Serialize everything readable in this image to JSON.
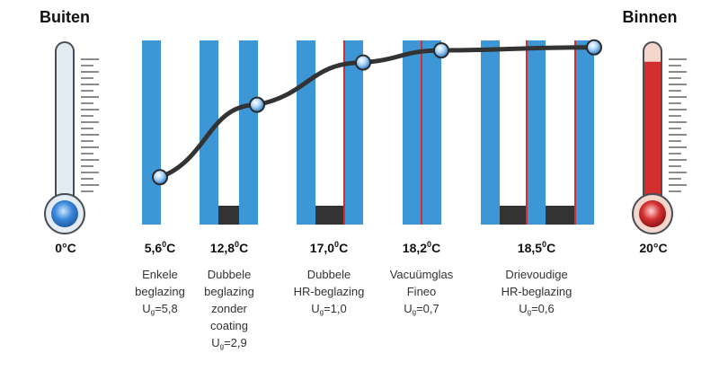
{
  "titles": {
    "outside": "Buiten",
    "inside": "Binnen"
  },
  "thermometers": {
    "outside": {
      "temperature": "0°C",
      "level": 0.0,
      "color": "#dde6f2",
      "bulb_color": "#3a86d9"
    },
    "inside": {
      "temperature": "20°C",
      "level": 0.93,
      "color": "#d32f2f",
      "bulb_color": "#c62828"
    }
  },
  "colors": {
    "glass": "#3d96d6",
    "spacer": "#333333",
    "coating": "#d32f2f",
    "curve": "#333333"
  },
  "chart_data": {
    "type": "line",
    "title": "",
    "categories": [
      "Enkele beglazing",
      "Dubbele beglazing zonder coating",
      "Dubbele HR-beglazing",
      "Vacuümglas Fineo",
      "Drievoudige HR-beglazing"
    ],
    "values": [
      5.6,
      12.8,
      17.0,
      18.2,
      18.5
    ],
    "unit": "°C"
  },
  "glazing": [
    {
      "temperature": "5,6",
      "unit": "C",
      "description": [
        "Enkele",
        "beglazing"
      ],
      "u_prefix": "U",
      "u_sub": "g",
      "u_value": "=5,8",
      "panes": 1,
      "spacers": 0,
      "coatings": 0
    },
    {
      "temperature": "12,8",
      "unit": "C",
      "description": [
        "Dubbele",
        "beglazing",
        "zonder",
        "coating"
      ],
      "u_prefix": "U",
      "u_sub": "g",
      "u_value": "=2,9",
      "panes": 2,
      "spacers": 1,
      "coatings": 0
    },
    {
      "temperature": "17,0",
      "unit": "C",
      "description": [
        "Dubbele",
        "HR-beglazing"
      ],
      "u_prefix": "U",
      "u_sub": "g",
      "u_value": "=1,0",
      "panes": 2,
      "spacers": 1,
      "coatings": 1
    },
    {
      "temperature": "18,2",
      "unit": "C",
      "description": [
        "Vacuümglas",
        "Fineo"
      ],
      "u_prefix": "U",
      "u_sub": "g",
      "u_value": "=0,7",
      "panes": 2,
      "spacers": 0,
      "coatings": 1
    },
    {
      "temperature": "18,5",
      "unit": "C",
      "description": [
        "Drievoudige",
        "HR-beglazing"
      ],
      "u_prefix": "U",
      "u_sub": "g",
      "u_value": "=0,6",
      "panes": 3,
      "spacers": 2,
      "coatings": 2
    }
  ]
}
